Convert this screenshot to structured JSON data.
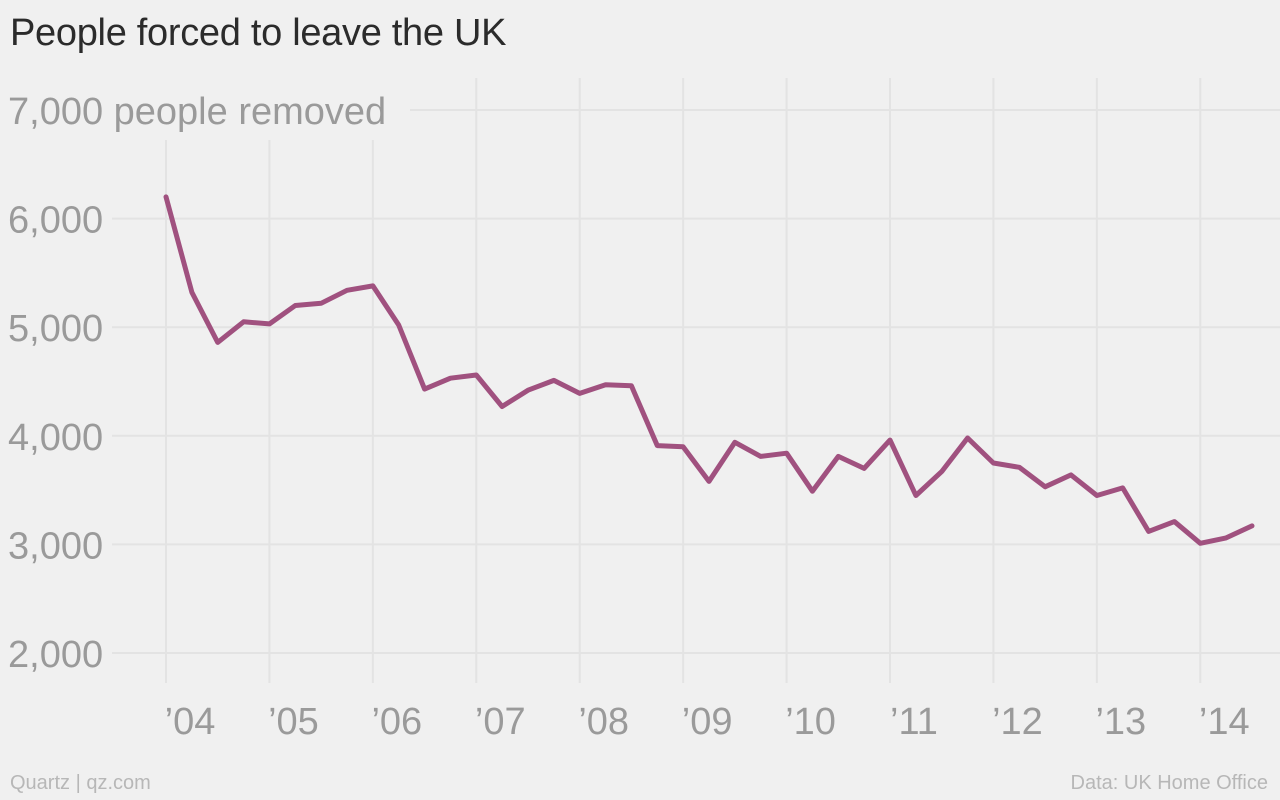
{
  "header": {
    "title": "People forced to leave the UK"
  },
  "footer": {
    "source_left": "Quartz | qz.com",
    "source_right": "Data: UK Home Office"
  },
  "colors": {
    "line": "#a0517f",
    "grid": "#e3e3e3",
    "background": "#f0f0f0",
    "tick_text": "#9a9a9a"
  },
  "chart_data": {
    "type": "line",
    "title": "People forced to leave the UK",
    "ylabel": "people removed",
    "ylim": [
      2000,
      7000
    ],
    "yticks": [
      2000,
      3000,
      4000,
      5000,
      6000,
      7000
    ],
    "ytick_labels": [
      "2,000",
      "3,000",
      "4,000",
      "5,000",
      "6,000",
      "7,000"
    ],
    "xlim": [
      2004,
      2014.5
    ],
    "xticks": [
      2004,
      2005,
      2006,
      2007,
      2008,
      2009,
      2010,
      2011,
      2012,
      2013,
      2014
    ],
    "xtick_labels": [
      "’04",
      "’05",
      "’06",
      "’07",
      "’08",
      "’09",
      "’10",
      "’11",
      "’12",
      "’13",
      "’14"
    ],
    "grid": true,
    "series": [
      {
        "x": [
          2004.0,
          2004.25,
          2004.5,
          2004.75,
          2005.0,
          2005.25,
          2005.5,
          2005.75,
          2006.0,
          2006.25,
          2006.5,
          2006.75,
          2007.0,
          2007.25,
          2007.5,
          2007.75,
          2008.0,
          2008.25,
          2008.5,
          2008.75,
          2009.0,
          2009.25,
          2009.5,
          2009.75,
          2010.0,
          2010.25,
          2010.5,
          2010.75,
          2011.0,
          2011.25,
          2011.5,
          2011.75,
          2012.0,
          2012.25,
          2012.5,
          2012.75,
          2013.0,
          2013.25,
          2013.5,
          2013.75,
          2014.0,
          2014.25,
          2014.5
        ],
        "values": [
          6200,
          5320,
          4860,
          5050,
          5030,
          5200,
          5220,
          5340,
          5380,
          5020,
          4430,
          4530,
          4560,
          4270,
          4420,
          4510,
          4390,
          4470,
          4460,
          3910,
          3900,
          3580,
          3940,
          3810,
          3840,
          3490,
          3810,
          3700,
          3960,
          3450,
          3670,
          3980,
          3750,
          3710,
          3530,
          3640,
          3450,
          3520,
          3120,
          3210,
          3010,
          3060,
          3170
        ]
      }
    ]
  }
}
